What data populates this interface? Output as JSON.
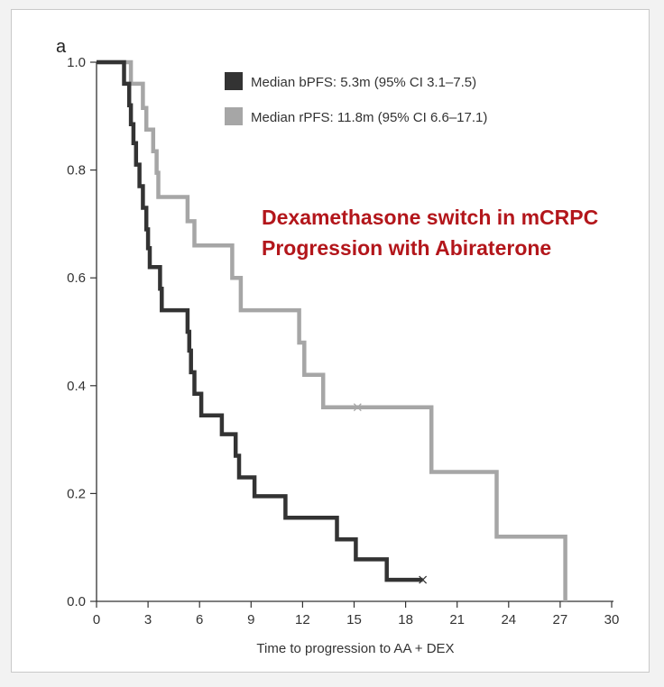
{
  "colors": {
    "series_dark": "#333333",
    "series_light": "#a6a6a6",
    "annotation": "#b3161b"
  },
  "chart_data": {
    "type": "line",
    "step": true,
    "panel_label": "a",
    "title": "",
    "xlabel": "Time to progression to AA + DEX",
    "ylabel": "",
    "xlim": [
      0,
      30
    ],
    "ylim": [
      0,
      1
    ],
    "x_ticks": [
      0,
      3,
      6,
      9,
      12,
      15,
      18,
      21,
      24,
      27,
      30
    ],
    "y_ticks": [
      0,
      0.2,
      0.4,
      0.6,
      0.8,
      1.0
    ],
    "x_tick_labels": [
      "0",
      "3",
      "6",
      "9",
      "12",
      "15",
      "18",
      "21",
      "24",
      "27",
      "30"
    ],
    "y_tick_labels": [
      "0.0",
      "0.2",
      "0.4",
      "0.6",
      "0.8",
      "1.0"
    ],
    "grid": false,
    "legend_position": "top-right",
    "annotation": [
      "Dexamethasone switch in mCRPC",
      "Progression with Abiraterone"
    ],
    "series": [
      {
        "name": "Median bPFS: 5.3m (95% CI 3.1–7.5)",
        "color_key": "series_dark",
        "points": [
          [
            0,
            1.0
          ],
          [
            1.6,
            1.0
          ],
          [
            1.6,
            0.96
          ],
          [
            1.9,
            0.96
          ],
          [
            1.9,
            0.92
          ],
          [
            2.0,
            0.92
          ],
          [
            2.0,
            0.885
          ],
          [
            2.15,
            0.885
          ],
          [
            2.15,
            0.85
          ],
          [
            2.3,
            0.85
          ],
          [
            2.3,
            0.81
          ],
          [
            2.5,
            0.81
          ],
          [
            2.5,
            0.77
          ],
          [
            2.7,
            0.77
          ],
          [
            2.7,
            0.73
          ],
          [
            2.9,
            0.73
          ],
          [
            2.9,
            0.69
          ],
          [
            3.0,
            0.69
          ],
          [
            3.0,
            0.655
          ],
          [
            3.1,
            0.655
          ],
          [
            3.1,
            0.62
          ],
          [
            3.7,
            0.62
          ],
          [
            3.7,
            0.58
          ],
          [
            3.8,
            0.58
          ],
          [
            3.8,
            0.54
          ],
          [
            5.3,
            0.54
          ],
          [
            5.3,
            0.5
          ],
          [
            5.4,
            0.5
          ],
          [
            5.4,
            0.465
          ],
          [
            5.5,
            0.465
          ],
          [
            5.5,
            0.425
          ],
          [
            5.7,
            0.425
          ],
          [
            5.7,
            0.385
          ],
          [
            6.1,
            0.385
          ],
          [
            6.1,
            0.345
          ],
          [
            7.3,
            0.345
          ],
          [
            7.3,
            0.31
          ],
          [
            8.1,
            0.31
          ],
          [
            8.1,
            0.27
          ],
          [
            8.3,
            0.27
          ],
          [
            8.3,
            0.23
          ],
          [
            9.2,
            0.23
          ],
          [
            9.2,
            0.195
          ],
          [
            11.0,
            0.195
          ],
          [
            11.0,
            0.155
          ],
          [
            14.0,
            0.155
          ],
          [
            14.0,
            0.115
          ],
          [
            15.1,
            0.115
          ],
          [
            15.1,
            0.078
          ],
          [
            16.9,
            0.078
          ],
          [
            16.9,
            0.04
          ],
          [
            19.0,
            0.04
          ]
        ],
        "censor": [
          [
            19.0,
            0.04
          ]
        ]
      },
      {
        "name": "Median rPFS: 11.8m (95% CI 6.6–17.1)",
        "color_key": "series_light",
        "points": [
          [
            0,
            1.0
          ],
          [
            2.0,
            1.0
          ],
          [
            2.0,
            0.96
          ],
          [
            2.7,
            0.96
          ],
          [
            2.7,
            0.915
          ],
          [
            2.9,
            0.915
          ],
          [
            2.9,
            0.875
          ],
          [
            3.3,
            0.875
          ],
          [
            3.3,
            0.835
          ],
          [
            3.5,
            0.835
          ],
          [
            3.5,
            0.795
          ],
          [
            3.6,
            0.795
          ],
          [
            3.6,
            0.75
          ],
          [
            5.3,
            0.75
          ],
          [
            5.3,
            0.705
          ],
          [
            5.7,
            0.705
          ],
          [
            5.7,
            0.66
          ],
          [
            7.9,
            0.66
          ],
          [
            7.9,
            0.6
          ],
          [
            8.4,
            0.6
          ],
          [
            8.4,
            0.54
          ],
          [
            11.8,
            0.54
          ],
          [
            11.8,
            0.48
          ],
          [
            12.1,
            0.48
          ],
          [
            12.1,
            0.42
          ],
          [
            13.2,
            0.42
          ],
          [
            13.2,
            0.36
          ],
          [
            19.5,
            0.36
          ],
          [
            19.5,
            0.24
          ],
          [
            23.3,
            0.24
          ],
          [
            23.3,
            0.12
          ],
          [
            27.3,
            0.12
          ],
          [
            27.3,
            0.0
          ]
        ],
        "censor": [
          [
            15.2,
            0.36
          ]
        ]
      }
    ]
  }
}
